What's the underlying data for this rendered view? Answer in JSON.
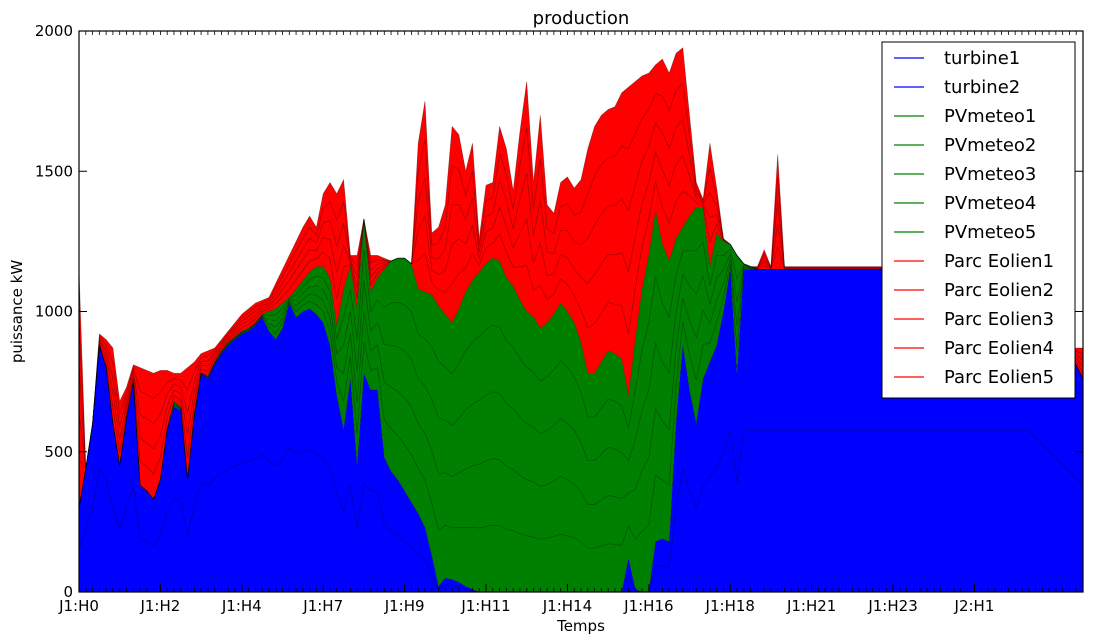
{
  "chart_data": {
    "type": "area",
    "stacked": true,
    "title": "production",
    "xlabel": "Temps",
    "ylabel": "puissance kW",
    "ylim": [
      0,
      2000
    ],
    "yticks": [
      0,
      500,
      1000,
      1500,
      2000
    ],
    "x_tick_labels": [
      "J1:H0",
      "J1:H2",
      "J1:H4",
      "J1:H7",
      "J1:H9",
      "J1:H11",
      "J1:H14",
      "J1:H16",
      "J1:H18",
      "J1:H21",
      "J1:H23",
      "J2:H1"
    ],
    "x_tick_steps": [
      0,
      12,
      24,
      36,
      48,
      60,
      72,
      84,
      96,
      108,
      120,
      132
    ],
    "step_count": 149,
    "legend_position": "top-right",
    "colors": {
      "turbine": "#0000ff",
      "pv": "#008000",
      "wind": "#ff0000"
    },
    "series": [
      {
        "name": "turbine1",
        "group": "turbine"
      },
      {
        "name": "turbine2",
        "group": "turbine"
      },
      {
        "name": "PVmeteo1",
        "group": "pv"
      },
      {
        "name": "PVmeteo2",
        "group": "pv"
      },
      {
        "name": "PVmeteo3",
        "group": "pv"
      },
      {
        "name": "PVmeteo4",
        "group": "pv"
      },
      {
        "name": "PVmeteo5",
        "group": "pv"
      },
      {
        "name": "Parc Eolien1",
        "group": "wind"
      },
      {
        "name": "Parc Eolien2",
        "group": "wind"
      },
      {
        "name": "Parc Eolien3",
        "group": "wind"
      },
      {
        "name": "Parc Eolien4",
        "group": "wind"
      },
      {
        "name": "Parc Eolien5",
        "group": "wind"
      }
    ],
    "cumulative_turbine": [
      [
        0,
        300
      ],
      [
        1,
        440
      ],
      [
        2,
        600
      ],
      [
        3,
        880
      ],
      [
        4,
        800
      ],
      [
        5,
        600
      ],
      [
        6,
        450
      ],
      [
        7,
        620
      ],
      [
        8,
        750
      ],
      [
        9,
        380
      ],
      [
        10,
        360
      ],
      [
        11,
        330
      ],
      [
        12,
        400
      ],
      [
        13,
        580
      ],
      [
        14,
        660
      ],
      [
        15,
        650
      ],
      [
        16,
        400
      ],
      [
        17,
        620
      ],
      [
        18,
        780
      ],
      [
        19,
        760
      ],
      [
        20,
        810
      ],
      [
        21,
        850
      ],
      [
        22,
        880
      ],
      [
        23,
        900
      ],
      [
        24,
        920
      ],
      [
        25,
        930
      ],
      [
        26,
        950
      ],
      [
        27,
        980
      ],
      [
        28,
        930
      ],
      [
        29,
        900
      ],
      [
        30,
        940
      ],
      [
        31,
        1030
      ],
      [
        32,
        980
      ],
      [
        33,
        1000
      ],
      [
        34,
        1010
      ],
      [
        35,
        990
      ],
      [
        36,
        960
      ],
      [
        37,
        880
      ],
      [
        38,
        700
      ],
      [
        39,
        580
      ],
      [
        40,
        760
      ],
      [
        41,
        450
      ],
      [
        42,
        780
      ],
      [
        43,
        720
      ],
      [
        44,
        720
      ],
      [
        45,
        480
      ],
      [
        46,
        430
      ],
      [
        47,
        400
      ],
      [
        48,
        360
      ],
      [
        49,
        320
      ],
      [
        50,
        280
      ],
      [
        51,
        230
      ],
      [
        52,
        130
      ],
      [
        53,
        20
      ],
      [
        54,
        50
      ],
      [
        55,
        45
      ],
      [
        56,
        35
      ],
      [
        57,
        20
      ],
      [
        58,
        10
      ],
      [
        59,
        0
      ],
      [
        60,
        0
      ],
      [
        80,
        0
      ],
      [
        81,
        120
      ],
      [
        82,
        10
      ],
      [
        83,
        0
      ],
      [
        84,
        0
      ],
      [
        85,
        180
      ],
      [
        86,
        190
      ],
      [
        87,
        180
      ],
      [
        88,
        600
      ],
      [
        89,
        880
      ],
      [
        90,
        720
      ],
      [
        91,
        600
      ],
      [
        92,
        760
      ],
      [
        93,
        820
      ],
      [
        94,
        880
      ],
      [
        95,
        1000
      ],
      [
        96,
        1150
      ],
      [
        97,
        780
      ],
      [
        98,
        1150
      ],
      [
        100,
        1150
      ],
      [
        120,
        1150
      ],
      [
        130,
        1150
      ],
      [
        140,
        1150
      ],
      [
        148,
        760
      ]
    ],
    "cumulative_pv": [
      [
        0,
        300
      ],
      [
        1,
        440
      ],
      [
        2,
        600
      ],
      [
        3,
        880
      ],
      [
        4,
        800
      ],
      [
        5,
        600
      ],
      [
        6,
        450
      ],
      [
        7,
        620
      ],
      [
        8,
        750
      ],
      [
        9,
        380
      ],
      [
        10,
        360
      ],
      [
        11,
        330
      ],
      [
        12,
        400
      ],
      [
        13,
        580
      ],
      [
        14,
        680
      ],
      [
        15,
        660
      ],
      [
        16,
        400
      ],
      [
        17,
        640
      ],
      [
        18,
        780
      ],
      [
        19,
        770
      ],
      [
        20,
        820
      ],
      [
        21,
        860
      ],
      [
        22,
        890
      ],
      [
        23,
        910
      ],
      [
        24,
        930
      ],
      [
        25,
        940
      ],
      [
        26,
        960
      ],
      [
        27,
        990
      ],
      [
        28,
        1000
      ],
      [
        29,
        1010
      ],
      [
        30,
        1030
      ],
      [
        31,
        1050
      ],
      [
        32,
        1080
      ],
      [
        33,
        1110
      ],
      [
        34,
        1140
      ],
      [
        35,
        1160
      ],
      [
        36,
        1160
      ],
      [
        37,
        1120
      ],
      [
        38,
        950
      ],
      [
        39,
        1080
      ],
      [
        40,
        1160
      ],
      [
        41,
        1010
      ],
      [
        42,
        1330
      ],
      [
        43,
        1070
      ],
      [
        44,
        1120
      ],
      [
        45,
        1150
      ],
      [
        46,
        1180
      ],
      [
        47,
        1190
      ],
      [
        48,
        1190
      ],
      [
        49,
        1170
      ],
      [
        50,
        1080
      ],
      [
        51,
        1070
      ],
      [
        52,
        1060
      ],
      [
        53,
        1020
      ],
      [
        54,
        990
      ],
      [
        55,
        960
      ],
      [
        56,
        1010
      ],
      [
        57,
        1070
      ],
      [
        58,
        1110
      ],
      [
        59,
        1140
      ],
      [
        60,
        1170
      ],
      [
        61,
        1190
      ],
      [
        62,
        1180
      ],
      [
        63,
        1120
      ],
      [
        64,
        1090
      ],
      [
        65,
        1040
      ],
      [
        66,
        1000
      ],
      [
        67,
        980
      ],
      [
        68,
        940
      ],
      [
        69,
        960
      ],
      [
        70,
        990
      ],
      [
        71,
        1030
      ],
      [
        72,
        1000
      ],
      [
        73,
        960
      ],
      [
        74,
        890
      ],
      [
        75,
        780
      ],
      [
        76,
        780
      ],
      [
        77,
        820
      ],
      [
        78,
        860
      ],
      [
        79,
        850
      ],
      [
        80,
        830
      ],
      [
        81,
        700
      ],
      [
        82,
        900
      ],
      [
        83,
        1080
      ],
      [
        84,
        1200
      ],
      [
        85,
        1360
      ],
      [
        86,
        1240
      ],
      [
        87,
        1180
      ],
      [
        88,
        1260
      ],
      [
        89,
        1300
      ],
      [
        90,
        1340
      ],
      [
        91,
        1370
      ],
      [
        92,
        1370
      ],
      [
        93,
        1160
      ],
      [
        94,
        1280
      ],
      [
        95,
        1250
      ],
      [
        96,
        1240
      ],
      [
        97,
        1200
      ],
      [
        98,
        1170
      ],
      [
        99,
        1160
      ],
      [
        100,
        1150
      ],
      [
        110,
        1150
      ],
      [
        130,
        1150
      ],
      [
        140,
        1150
      ],
      [
        141,
        900
      ],
      [
        142,
        620
      ],
      [
        143,
        760
      ],
      [
        148,
        760
      ]
    ],
    "cumulative_total": [
      [
        0,
        1150
      ],
      [
        1,
        430
      ],
      [
        2,
        580
      ],
      [
        3,
        920
      ],
      [
        4,
        900
      ],
      [
        5,
        870
      ],
      [
        6,
        680
      ],
      [
        7,
        730
      ],
      [
        8,
        810
      ],
      [
        9,
        800
      ],
      [
        10,
        790
      ],
      [
        11,
        780
      ],
      [
        12,
        790
      ],
      [
        13,
        790
      ],
      [
        14,
        780
      ],
      [
        15,
        780
      ],
      [
        16,
        800
      ],
      [
        17,
        820
      ],
      [
        18,
        850
      ],
      [
        19,
        860
      ],
      [
        20,
        870
      ],
      [
        21,
        900
      ],
      [
        22,
        930
      ],
      [
        23,
        960
      ],
      [
        24,
        990
      ],
      [
        25,
        1010
      ],
      [
        26,
        1030
      ],
      [
        27,
        1040
      ],
      [
        28,
        1050
      ],
      [
        29,
        1100
      ],
      [
        30,
        1150
      ],
      [
        31,
        1200
      ],
      [
        32,
        1250
      ],
      [
        33,
        1300
      ],
      [
        34,
        1340
      ],
      [
        35,
        1300
      ],
      [
        36,
        1420
      ],
      [
        37,
        1460
      ],
      [
        38,
        1420
      ],
      [
        39,
        1470
      ],
      [
        40,
        1200
      ],
      [
        41,
        1200
      ],
      [
        42,
        1200
      ],
      [
        43,
        1200
      ],
      [
        44,
        1200
      ],
      [
        45,
        1190
      ],
      [
        46,
        1180
      ],
      [
        47,
        1170
      ],
      [
        48,
        1160
      ],
      [
        49,
        1160
      ],
      [
        50,
        1600
      ],
      [
        51,
        1750
      ],
      [
        52,
        1280
      ],
      [
        53,
        1300
      ],
      [
        54,
        1380
      ],
      [
        55,
        1660
      ],
      [
        56,
        1630
      ],
      [
        57,
        1500
      ],
      [
        58,
        1600
      ],
      [
        59,
        1260
      ],
      [
        60,
        1450
      ],
      [
        61,
        1460
      ],
      [
        62,
        1660
      ],
      [
        63,
        1580
      ],
      [
        64,
        1430
      ],
      [
        65,
        1640
      ],
      [
        66,
        1820
      ],
      [
        67,
        1460
      ],
      [
        68,
        1700
      ],
      [
        69,
        1380
      ],
      [
        70,
        1350
      ],
      [
        71,
        1460
      ],
      [
        72,
        1480
      ],
      [
        73,
        1440
      ],
      [
        74,
        1470
      ],
      [
        75,
        1580
      ],
      [
        76,
        1660
      ],
      [
        77,
        1700
      ],
      [
        78,
        1720
      ],
      [
        79,
        1730
      ],
      [
        80,
        1780
      ],
      [
        81,
        1800
      ],
      [
        82,
        1820
      ],
      [
        83,
        1840
      ],
      [
        84,
        1850
      ],
      [
        85,
        1880
      ],
      [
        86,
        1900
      ],
      [
        87,
        1850
      ],
      [
        88,
        1920
      ],
      [
        89,
        1940
      ],
      [
        90,
        1700
      ],
      [
        91,
        1460
      ],
      [
        92,
        1400
      ],
      [
        93,
        1600
      ],
      [
        94,
        1440
      ],
      [
        95,
        1260
      ],
      [
        96,
        1200
      ],
      [
        97,
        1180
      ],
      [
        98,
        1160
      ],
      [
        99,
        1150
      ],
      [
        100,
        1160
      ],
      [
        101,
        1220
      ],
      [
        102,
        1160
      ],
      [
        103,
        1560
      ],
      [
        104,
        1160
      ],
      [
        105,
        1160
      ],
      [
        106,
        1160
      ],
      [
        140,
        1160
      ],
      [
        141,
        930
      ],
      [
        142,
        640
      ],
      [
        143,
        800
      ],
      [
        144,
        830
      ],
      [
        145,
        850
      ],
      [
        146,
        860
      ],
      [
        147,
        870
      ],
      [
        148,
        870
      ]
    ]
  }
}
